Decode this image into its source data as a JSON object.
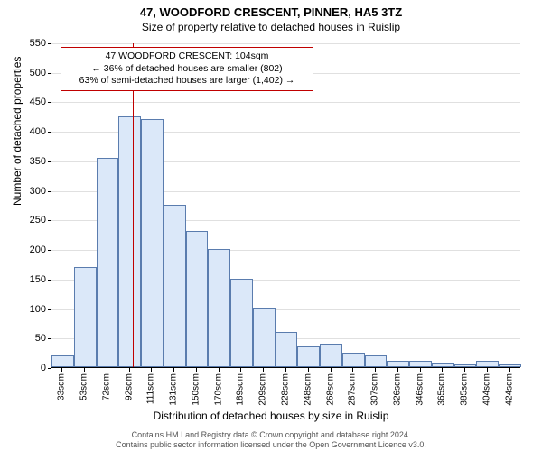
{
  "title": "47, WOODFORD CRESCENT, PINNER, HA5 3TZ",
  "subtitle": "Size of property relative to detached houses in Ruislip",
  "ylabel": "Number of detached properties",
  "xlabel": "Distribution of detached houses by size in Ruislip",
  "chart": {
    "type": "histogram",
    "bg": "#ffffff",
    "bar_fill": "#dbe8f9",
    "bar_border": "#5a7cae",
    "grid_color": "#e0e0e0",
    "marker_color": "#c00000",
    "ylim": [
      0,
      550
    ],
    "yticks": [
      0,
      50,
      100,
      150,
      200,
      250,
      300,
      350,
      400,
      450,
      500,
      550
    ],
    "xticks": [
      "33sqm",
      "53sqm",
      "72sqm",
      "92sqm",
      "111sqm",
      "131sqm",
      "150sqm",
      "170sqm",
      "189sqm",
      "209sqm",
      "228sqm",
      "248sqm",
      "268sqm",
      "287sqm",
      "307sqm",
      "326sqm",
      "346sqm",
      "365sqm",
      "385sqm",
      "404sqm",
      "424sqm"
    ],
    "values": [
      20,
      170,
      355,
      425,
      420,
      275,
      230,
      200,
      150,
      100,
      60,
      35,
      40,
      25,
      20,
      10,
      10,
      8,
      5,
      10,
      5
    ],
    "marker_x_sqm": 104,
    "x_start": 33,
    "x_step": 19.55
  },
  "annotation": {
    "line1": "47 WOODFORD CRESCENT: 104sqm",
    "line2": "← 36% of detached houses are smaller (802)",
    "line3": "63% of semi-detached houses are larger (1,402) →"
  },
  "footer": {
    "line1": "Contains HM Land Registry data © Crown copyright and database right 2024.",
    "line2": "Contains public sector information licensed under the Open Government Licence v3.0."
  }
}
